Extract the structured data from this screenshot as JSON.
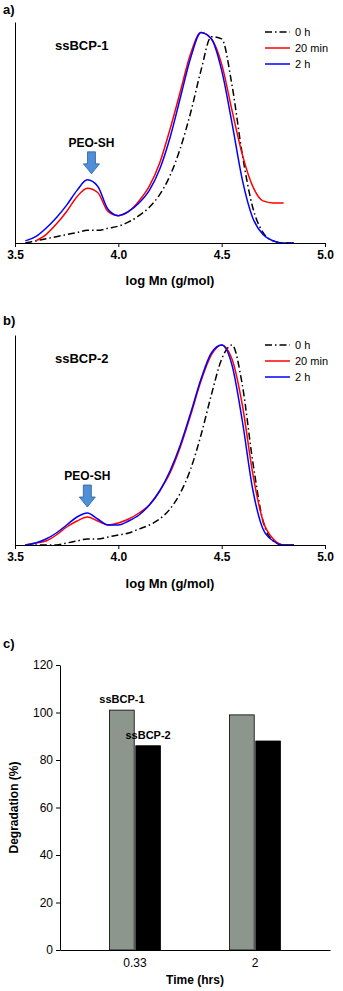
{
  "chart_data": [
    {
      "type": "line",
      "label": "a)",
      "title": "ssBCP-1",
      "x_label": "log Mn (g/mol)",
      "x": [
        3.55,
        3.6,
        3.65,
        3.7,
        3.75,
        3.8,
        3.85,
        3.9,
        3.95,
        4.0,
        4.05,
        4.1,
        4.15,
        4.2,
        4.25,
        4.3,
        4.35,
        4.4,
        4.45,
        4.5,
        4.55,
        4.6,
        4.65,
        4.7,
        4.75,
        4.8,
        4.85
      ],
      "series": [
        {
          "name": "0 h",
          "color": "#000000",
          "line_style": "dashdot",
          "values": [
            0.0,
            0.01,
            0.02,
            0.03,
            0.04,
            0.05,
            0.06,
            0.06,
            0.07,
            0.08,
            0.1,
            0.13,
            0.17,
            0.23,
            0.32,
            0.45,
            0.62,
            0.82,
            0.98,
            0.97,
            0.75,
            0.42,
            0.17,
            0.05,
            0.01,
            0.0,
            0.0
          ]
        },
        {
          "name": "20 min",
          "color": "#ff0000",
          "line_style": "solid",
          "values": [
            null,
            0.01,
            0.04,
            0.09,
            0.15,
            0.22,
            0.26,
            0.24,
            0.15,
            0.13,
            0.15,
            0.2,
            0.27,
            0.38,
            0.54,
            0.72,
            0.9,
            1.0,
            0.97,
            0.85,
            0.63,
            0.42,
            0.27,
            0.2,
            0.19,
            0.19,
            null
          ]
        },
        {
          "name": "2 h",
          "color": "#0000ff",
          "line_style": "solid",
          "values": [
            0.01,
            0.03,
            0.07,
            0.12,
            0.18,
            0.25,
            0.3,
            0.27,
            0.16,
            0.13,
            0.15,
            0.19,
            0.25,
            0.35,
            0.5,
            0.69,
            0.88,
            1.0,
            0.97,
            0.82,
            0.57,
            0.3,
            0.12,
            0.04,
            0.01,
            0.0,
            0.0
          ]
        }
      ],
      "annotations": [
        {
          "text": "PEO-SH",
          "x": 3.87
        }
      ],
      "xlim": [
        3.5,
        5.0
      ],
      "xticks": [
        3.5,
        {
          "value": 4,
          "label": "4.0"
        },
        4.5,
        {
          "value": 5,
          "label": "5.0"
        }
      ],
      "ylim": [
        0,
        1.05
      ],
      "yticks": [],
      "tick_labels": "x",
      "grid": false,
      "legend": "upper right"
    },
    {
      "type": "line",
      "label": "b)",
      "title": "ssBCP-2",
      "x_label": "log Mn (g/mol)",
      "x": [
        3.55,
        3.6,
        3.65,
        3.7,
        3.75,
        3.8,
        3.85,
        3.9,
        3.95,
        4.0,
        4.05,
        4.1,
        4.15,
        4.2,
        4.25,
        4.3,
        4.35,
        4.4,
        4.45,
        4.5,
        4.55,
        4.6,
        4.65,
        4.7,
        4.75,
        4.8,
        4.85
      ],
      "series": [
        {
          "name": "0 h",
          "color": "#000000",
          "line_style": "dashdot",
          "values": [
            0.0,
            0.0,
            0.0,
            0.0,
            0.01,
            0.02,
            0.03,
            0.03,
            0.04,
            0.05,
            0.06,
            0.08,
            0.1,
            0.13,
            0.18,
            0.26,
            0.38,
            0.55,
            0.75,
            0.93,
            1.0,
            0.8,
            0.42,
            0.12,
            0.02,
            0.0,
            0.0
          ]
        },
        {
          "name": "20 min",
          "color": "#ff0000",
          "line_style": "solid",
          "values": [
            0.0,
            0.01,
            0.02,
            0.05,
            0.09,
            0.12,
            0.14,
            0.12,
            0.1,
            0.11,
            0.13,
            0.16,
            0.2,
            0.27,
            0.36,
            0.49,
            0.65,
            0.82,
            0.95,
            1.0,
            0.93,
            0.7,
            0.36,
            0.12,
            0.03,
            0.0,
            0.0
          ]
        },
        {
          "name": "2 h",
          "color": "#0000ff",
          "line_style": "solid",
          "values": [
            0.0,
            0.01,
            0.03,
            0.06,
            0.1,
            0.14,
            0.16,
            0.13,
            0.1,
            0.1,
            0.12,
            0.15,
            0.2,
            0.27,
            0.37,
            0.5,
            0.66,
            0.83,
            0.96,
            1.0,
            0.9,
            0.62,
            0.28,
            0.08,
            0.02,
            0.0,
            0.0
          ]
        }
      ],
      "annotations": [
        {
          "text": "PEO-SH",
          "x": 3.85
        }
      ],
      "xlim": [
        3.5,
        5.0
      ],
      "xticks": [
        3.5,
        {
          "value": 4,
          "label": "4.0"
        },
        4.5,
        {
          "value": 5,
          "label": "5.0"
        }
      ],
      "ylim": [
        0,
        1.05
      ],
      "yticks": [],
      "tick_labels": "x",
      "grid": false,
      "legend": "upper right"
    },
    {
      "type": "bar",
      "label": "c)",
      "x_label": "Time (hrs)",
      "y_label": "Degradation (%)",
      "categories": [
        "0.33",
        "2"
      ],
      "series": [
        {
          "name": "ssBCP-1",
          "color": "#8c968c",
          "values": [
            101,
            99
          ]
        },
        {
          "name": "ssBCP-2",
          "color": "#000000",
          "values": [
            86,
            88
          ]
        }
      ],
      "ylim": [
        0,
        120
      ],
      "yticks": [
        0,
        20,
        40,
        60,
        80,
        100,
        120
      ],
      "grid": false
    }
  ]
}
